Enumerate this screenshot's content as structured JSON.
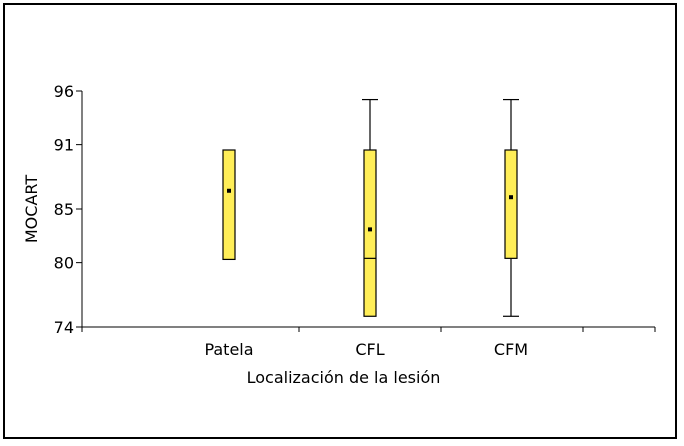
{
  "chart_data": {
    "type": "boxplot",
    "xlabel": "Localización de la lesión",
    "ylabel": "MOCART",
    "ylim": [
      74,
      96
    ],
    "yticks": [
      74,
      80,
      85,
      91,
      96
    ],
    "categories": [
      "Patela",
      "CFL",
      "CFM"
    ],
    "box_color": "#ffee58",
    "boxes": [
      {
        "category": "Patela",
        "min": 80.3,
        "q1": 80.3,
        "median": 80.3,
        "q3": 90.5,
        "max": 90.5,
        "mean": 86.7
      },
      {
        "category": "CFL",
        "min": 75.0,
        "q1": 75.0,
        "median": 80.4,
        "q3": 90.5,
        "max": 95.2,
        "mean": 83.1
      },
      {
        "category": "CFM",
        "min": 75.0,
        "q1": 80.4,
        "median": 80.4,
        "q3": 90.5,
        "max": 95.2,
        "mean": 86.1
      }
    ],
    "grid": false,
    "legend": "none"
  }
}
